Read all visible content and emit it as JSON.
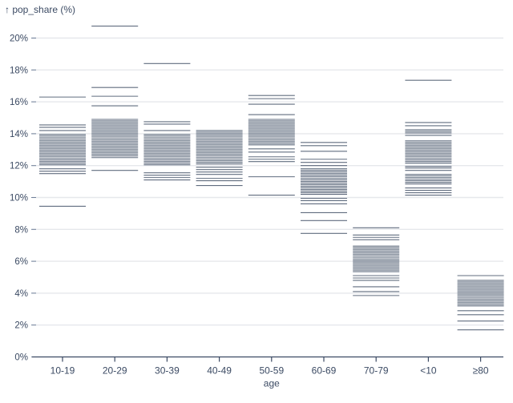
{
  "title": "↑ pop_share (%)",
  "chart_data": {
    "type": "tick-strip",
    "title": "↑ pop_share (%)",
    "xlabel": "age",
    "ylabel": "pop_share (%)",
    "ylim": [
      0,
      20
    ],
    "yticks": [
      0,
      2,
      4,
      6,
      8,
      10,
      12,
      14,
      16,
      18,
      20
    ],
    "ytick_suffix": "%",
    "grid": true,
    "legend": "none",
    "categories": [
      "10-19",
      "20-29",
      "30-39",
      "40-49",
      "50-59",
      "60-69",
      "70-79",
      "<10",
      "≥80"
    ],
    "series": [
      {
        "category": "10-19",
        "values": [
          16.3,
          14.55,
          14.4,
          14.2,
          13.95,
          13.85,
          13.75,
          13.65,
          13.55,
          13.45,
          13.35,
          13.25,
          13.15,
          13.05,
          12.95,
          12.85,
          12.75,
          12.65,
          12.55,
          12.45,
          12.35,
          12.25,
          12.15,
          12.05,
          11.8,
          11.65,
          11.5,
          9.45
        ]
      },
      {
        "category": "20-29",
        "values": [
          20.75,
          16.9,
          16.35,
          15.75,
          14.9,
          14.8,
          14.7,
          14.6,
          14.5,
          14.4,
          14.3,
          14.2,
          14.1,
          14.0,
          13.9,
          13.8,
          13.7,
          13.6,
          13.5,
          13.4,
          13.3,
          13.2,
          13.1,
          13.0,
          12.9,
          12.8,
          12.7,
          12.6,
          12.5,
          11.7
        ]
      },
      {
        "category": "30-39",
        "values": [
          18.4,
          14.75,
          14.6,
          14.2,
          13.95,
          13.85,
          13.75,
          13.65,
          13.55,
          13.45,
          13.35,
          13.25,
          13.15,
          13.05,
          12.95,
          12.85,
          12.75,
          12.65,
          12.55,
          12.45,
          12.35,
          12.25,
          12.15,
          12.05,
          11.55,
          11.4,
          11.25,
          11.1
        ]
      },
      {
        "category": "40-49",
        "values": [
          14.2,
          14.1,
          14.0,
          13.9,
          13.8,
          13.7,
          13.6,
          13.5,
          13.4,
          13.3,
          13.2,
          13.1,
          13.0,
          12.9,
          12.8,
          12.7,
          12.6,
          12.5,
          12.4,
          12.3,
          12.2,
          12.1,
          11.9,
          11.75,
          11.6,
          11.45,
          11.2,
          11.05,
          10.75
        ]
      },
      {
        "category": "50-59",
        "values": [
          16.4,
          16.2,
          15.85,
          15.2,
          14.9,
          14.8,
          14.7,
          14.6,
          14.5,
          14.4,
          14.3,
          14.2,
          14.1,
          14.0,
          13.9,
          13.8,
          13.7,
          13.6,
          13.5,
          13.4,
          13.3,
          13.05,
          12.85,
          12.55,
          12.4,
          12.25,
          11.3,
          10.15
        ]
      },
      {
        "category": "60-69",
        "values": [
          13.45,
          13.25,
          12.9,
          12.4,
          12.2,
          12.0,
          11.8,
          11.7,
          11.6,
          11.5,
          11.4,
          11.3,
          11.2,
          11.1,
          11.0,
          10.9,
          10.8,
          10.7,
          10.6,
          10.5,
          10.4,
          10.3,
          10.2,
          9.95,
          9.8,
          9.6,
          9.05,
          8.55,
          7.75
        ]
      },
      {
        "category": "70-79",
        "values": [
          8.1,
          7.65,
          7.5,
          7.35,
          6.95,
          6.85,
          6.75,
          6.65,
          6.55,
          6.45,
          6.35,
          6.25,
          6.15,
          6.05,
          5.95,
          5.85,
          5.75,
          5.65,
          5.55,
          5.45,
          5.35,
          5.1,
          4.95,
          4.8,
          4.4,
          4.1,
          3.85
        ]
      },
      {
        "category": "<10",
        "values": [
          17.35,
          14.7,
          14.5,
          14.25,
          14.15,
          14.05,
          13.9,
          13.55,
          13.45,
          13.35,
          13.25,
          13.15,
          13.05,
          12.95,
          12.85,
          12.75,
          12.65,
          12.55,
          12.45,
          12.35,
          12.25,
          12.15,
          11.95,
          11.85,
          11.7,
          11.45,
          11.35,
          11.25,
          11.15,
          11.05,
          10.95,
          10.85,
          10.6,
          10.45,
          10.3,
          10.15
        ]
      },
      {
        "category": "≥80",
        "values": [
          5.1,
          4.8,
          4.7,
          4.6,
          4.5,
          4.4,
          4.3,
          4.2,
          4.1,
          4.0,
          3.9,
          3.8,
          3.7,
          3.6,
          3.5,
          3.4,
          3.3,
          3.2,
          2.9,
          2.65,
          2.25,
          1.7
        ]
      }
    ]
  },
  "colors": {
    "text": "#3b4a63",
    "gridline": "#e6e8ec",
    "axis_line": "#3b4a63",
    "y_tick_dash": "#70809a",
    "data_tick": "#24344d",
    "background": "#ffffff"
  }
}
